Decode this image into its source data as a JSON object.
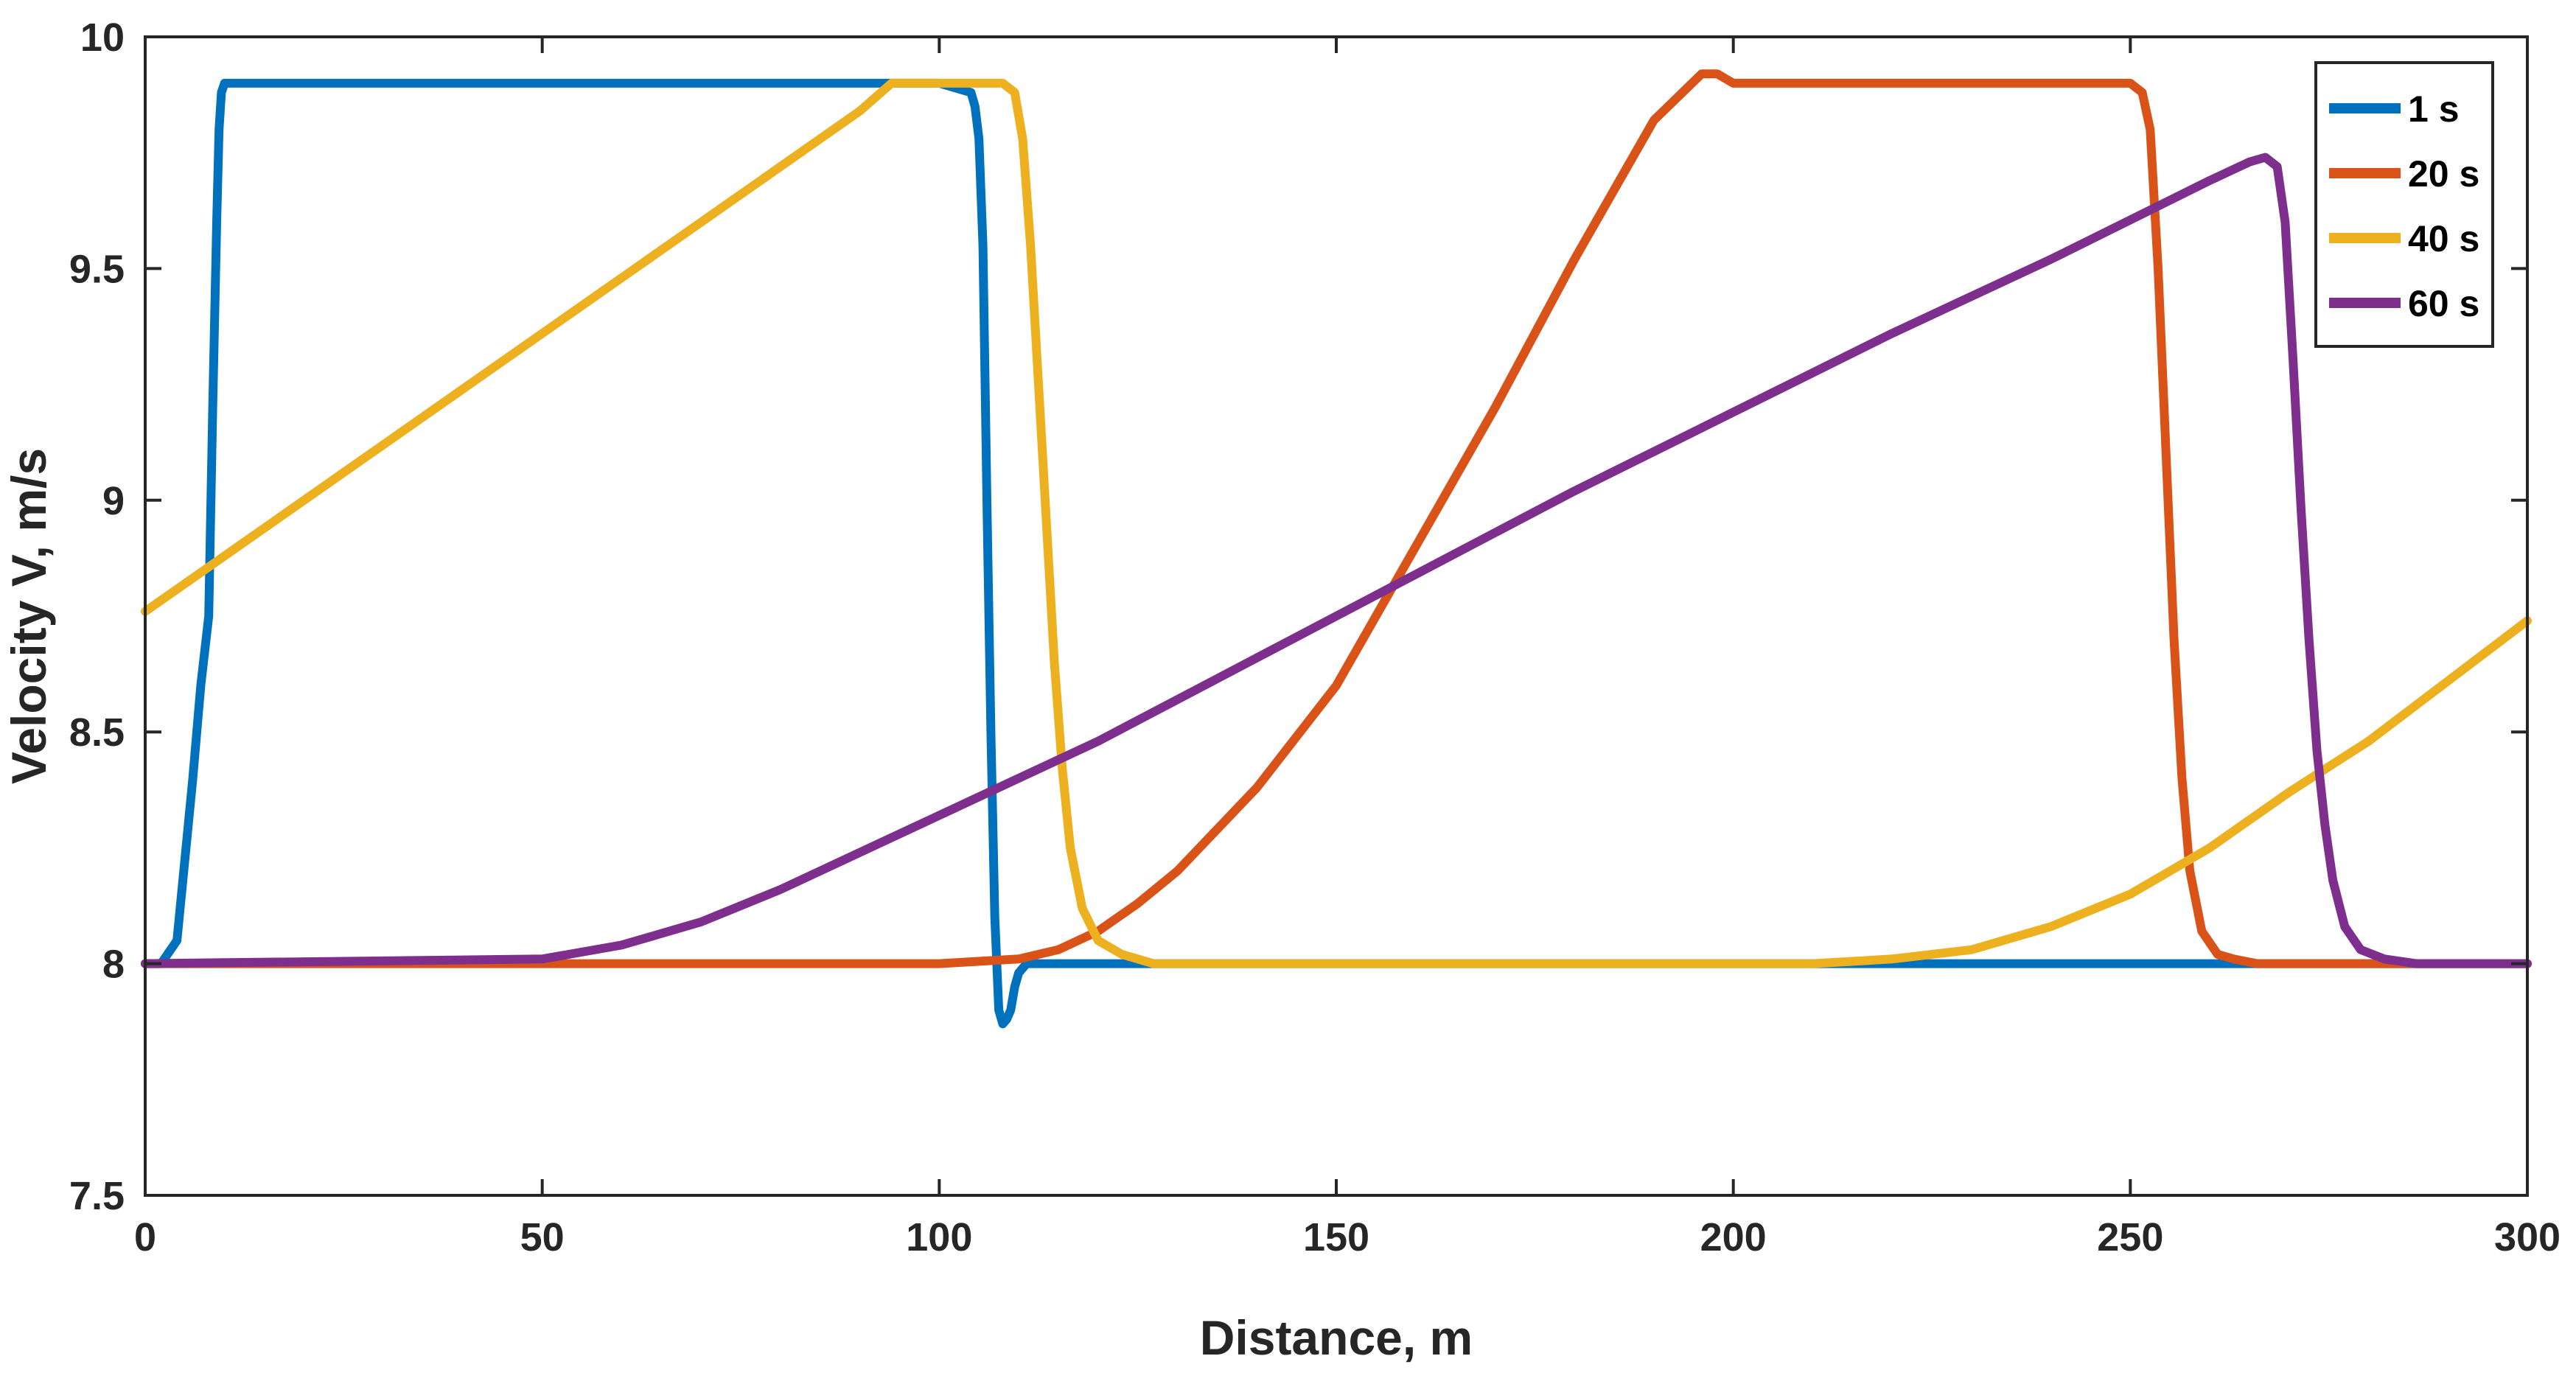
{
  "chart_data": {
    "type": "line",
    "title": "",
    "xlabel": "Distance, m",
    "ylabel": "Velocity V, m/s",
    "xlim": [
      0,
      300
    ],
    "ylim": [
      7.5,
      10
    ],
    "xticks": [
      0,
      50,
      100,
      150,
      200,
      250,
      300
    ],
    "yticks": [
      7.5,
      8,
      8.5,
      9,
      9.5,
      10
    ],
    "xtick_labels": [
      "0",
      "50",
      "100",
      "150",
      "200",
      "250",
      "300"
    ],
    "ytick_labels": [
      "7.5",
      "8",
      "8.5",
      "9",
      "9.5",
      "10"
    ],
    "grid": false,
    "legend_position": "top-right",
    "series": [
      {
        "name": "1 s",
        "color": "#0072BD",
        "x": [
          0,
          2,
          4,
          6,
          7,
          8,
          8.5,
          9,
          9.3,
          9.6,
          10,
          50,
          100,
          104,
          104.5,
          105,
          105.5,
          106,
          106.5,
          107,
          107.5,
          108,
          108.5,
          109,
          109.5,
          110,
          111,
          112,
          300
        ],
        "y": [
          8,
          8,
          8.05,
          8.4,
          8.6,
          8.75,
          9.2,
          9.6,
          9.8,
          9.88,
          9.9,
          9.9,
          9.9,
          9.88,
          9.85,
          9.78,
          9.55,
          9.0,
          8.5,
          8.1,
          7.9,
          7.87,
          7.88,
          7.9,
          7.95,
          7.98,
          8.0,
          8.0,
          8.0
        ]
      },
      {
        "name": "20 s",
        "color": "#D95319",
        "x": [
          0,
          100,
          110,
          115,
          120,
          125,
          130,
          140,
          150,
          160,
          170,
          180,
          190,
          196,
          198,
          200,
          210,
          230,
          250,
          251.5,
          252.5,
          253.5,
          254.5,
          255.5,
          256.5,
          257.5,
          259,
          261,
          263,
          266,
          270,
          300
        ],
        "y": [
          8,
          8,
          8.01,
          8.03,
          8.07,
          8.13,
          8.2,
          8.38,
          8.6,
          8.9,
          9.2,
          9.52,
          9.82,
          9.92,
          9.92,
          9.9,
          9.9,
          9.9,
          9.9,
          9.88,
          9.8,
          9.5,
          9.1,
          8.7,
          8.4,
          8.2,
          8.07,
          8.02,
          8.01,
          8.0,
          8.0,
          8.0
        ]
      },
      {
        "name": "40 s",
        "color": "#EDB120",
        "x": [
          0,
          20,
          40,
          60,
          80,
          90,
          94,
          100,
          108,
          109.5,
          110.5,
          111.5,
          112.5,
          113.5,
          114.5,
          115.5,
          116.5,
          118,
          120,
          123,
          127,
          135,
          200,
          210,
          220,
          230,
          240,
          250,
          260,
          270,
          280,
          290,
          300
        ],
        "y": [
          8.76,
          9.0,
          9.24,
          9.48,
          9.72,
          9.84,
          9.9,
          9.9,
          9.9,
          9.88,
          9.78,
          9.55,
          9.25,
          8.95,
          8.65,
          8.42,
          8.25,
          8.12,
          8.05,
          8.02,
          8.0,
          8.0,
          8.0,
          8.0,
          8.01,
          8.03,
          8.08,
          8.15,
          8.25,
          8.37,
          8.48,
          8.61,
          8.74
        ]
      },
      {
        "name": "60 s",
        "color": "#7E2F8E",
        "x": [
          0,
          50,
          60,
          70,
          80,
          90,
          100,
          120,
          140,
          160,
          180,
          200,
          220,
          240,
          260,
          265,
          267,
          268.5,
          269.5,
          270.5,
          271.5,
          272.5,
          273.5,
          274.5,
          275.5,
          277,
          279,
          282,
          286,
          300
        ],
        "y": [
          8,
          8.01,
          8.04,
          8.09,
          8.16,
          8.24,
          8.32,
          8.48,
          8.66,
          8.84,
          9.02,
          9.19,
          9.36,
          9.52,
          9.69,
          9.73,
          9.74,
          9.72,
          9.6,
          9.3,
          8.98,
          8.7,
          8.46,
          8.3,
          8.18,
          8.08,
          8.03,
          8.01,
          8.0,
          8.0
        ]
      }
    ]
  }
}
